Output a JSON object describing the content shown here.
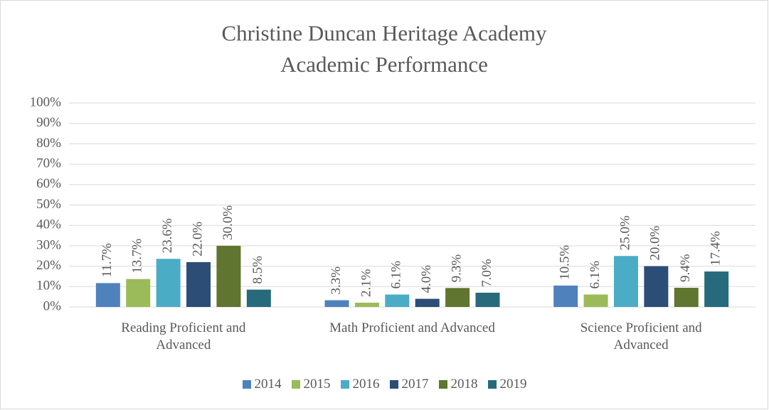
{
  "chart_data": {
    "type": "bar",
    "title": [
      "Christine Duncan Heritage Academy",
      "Academic Performance"
    ],
    "categories": [
      "Reading Proficient and Advanced",
      "Math Proficient and Advanced",
      "Science Proficient and Advanced"
    ],
    "series": [
      {
        "name": "2014",
        "color": "#4f81bd",
        "values": [
          11.7,
          3.3,
          10.5
        ],
        "value_labels": [
          "11.7%",
          "3.3%",
          "10.5%"
        ]
      },
      {
        "name": "2015",
        "color": "#9bbb59",
        "values": [
          13.7,
          2.1,
          6.1
        ],
        "value_labels": [
          "13.7%",
          "2.1%",
          "6.1%"
        ]
      },
      {
        "name": "2016",
        "color": "#4bacc6",
        "values": [
          23.6,
          6.1,
          25.0
        ],
        "value_labels": [
          "23.6%",
          "6.1%",
          "25.0%"
        ]
      },
      {
        "name": "2017",
        "color": "#2c4d75",
        "values": [
          22.0,
          4.0,
          20.0
        ],
        "value_labels": [
          "22.0%",
          "4.0%",
          "20.0%"
        ]
      },
      {
        "name": "2018",
        "color": "#5f7530",
        "values": [
          30.0,
          9.3,
          9.4
        ],
        "value_labels": [
          "30.0%",
          "9.3%",
          "9.4%"
        ]
      },
      {
        "name": "2019",
        "color": "#276a7c",
        "values": [
          8.5,
          7.0,
          17.4
        ],
        "value_labels": [
          "8.5%",
          "7.0%",
          "17.4%"
        ]
      }
    ],
    "ylim": [
      0,
      100
    ],
    "yticks": [
      {
        "value": 0,
        "label": "0%"
      },
      {
        "value": 10,
        "label": "10%"
      },
      {
        "value": 20,
        "label": "20%"
      },
      {
        "value": 30,
        "label": "30%"
      },
      {
        "value": 40,
        "label": "40%"
      },
      {
        "value": 50,
        "label": "50%"
      },
      {
        "value": 60,
        "label": "60%"
      },
      {
        "value": 70,
        "label": "70%"
      },
      {
        "value": 80,
        "label": "80%"
      },
      {
        "value": 90,
        "label": "90%"
      },
      {
        "value": 100,
        "label": "100%"
      }
    ],
    "grid": true,
    "legend": "bottom"
  }
}
